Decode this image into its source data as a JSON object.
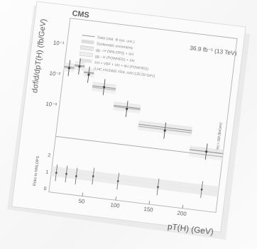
{
  "figure": {
    "experiment": "CMS",
    "luminosity_label": "36.9 fb⁻¹ (13 TeV)",
    "ylabel_top": "dσfid/dpT(H) (fb/GeV)",
    "ylabel_bottom": "Ratio to NNLOPS",
    "xlabel": "pT(H) (GeV)",
    "overflow_label": "pT(H) > 200 (fb/GeV)",
    "legend": [
      "Data (stat. ⊕ sys. unc.)",
      "Systematic uncertainty",
      "gg→H (NNLOPS) + XH",
      "gg→H (POWHEG) + XH",
      "XH = VBF + VH + ttH (POWHEG)",
      "(LHC HXSWG YR4, mH=125.09 GeV)"
    ],
    "y_ticks_top": [
      "10⁻¹",
      "10⁻²",
      "10⁻³"
    ],
    "x_ticks": [
      "50",
      "100",
      "150",
      "200"
    ],
    "ratio_ticks": [
      "0",
      "1",
      "2"
    ]
  },
  "chart_data": {
    "type": "line",
    "title": "",
    "xlabel": "pT(H) (GeV)",
    "ylabel": "dσfid/dpT(H) (fb/GeV)",
    "yscale": "log",
    "xlim": [
      0,
      250
    ],
    "ylim": [
      0.0005,
      0.5
    ],
    "bin_edges": [
      0,
      15,
      30,
      45,
      80,
      120,
      200,
      250
    ],
    "series": [
      {
        "name": "gg→H (NNLOPS) + XH",
        "values": [
          0.03,
          0.035,
          0.025,
          0.012,
          0.0045,
          0.0018,
          0.0006
        ]
      },
      {
        "name": "gg→H (POWHEG) + XH",
        "values": [
          0.028,
          0.033,
          0.024,
          0.011,
          0.0042,
          0.0016,
          0.0005
        ]
      }
    ],
    "data_points": {
      "name": "Data (stat. ⊕ sys. unc.)",
      "x": [
        7.5,
        22.5,
        37.5,
        62.5,
        100,
        160,
        225
      ],
      "y": [
        0.028,
        0.033,
        0.022,
        0.012,
        0.004,
        0.0015,
        0.0006
      ]
    }
  }
}
